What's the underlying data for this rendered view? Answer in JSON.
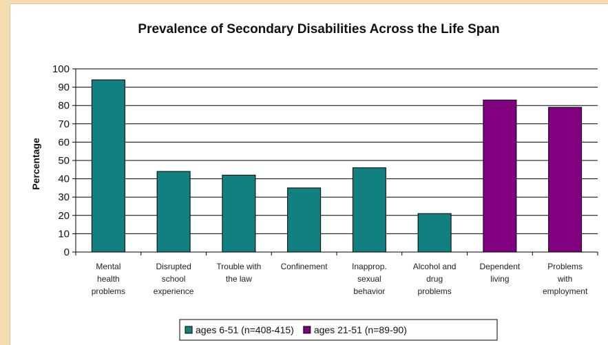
{
  "chart_data": {
    "type": "bar",
    "title": "Prevalence of Secondary Disabilities Across the Life Span",
    "xlabel": "",
    "ylabel": "Percentage",
    "ylim": [
      0,
      100
    ],
    "yticks": [
      0,
      10,
      20,
      30,
      40,
      50,
      60,
      70,
      80,
      90,
      100
    ],
    "grid": true,
    "legend_position": "bottom",
    "categories": [
      [
        "Mental",
        "health",
        "problems"
      ],
      [
        "Disrupted",
        "school",
        "experience"
      ],
      [
        "Trouble with",
        "the law"
      ],
      [
        "Confinement"
      ],
      [
        "Inapprop.",
        "sexual",
        "behavior"
      ],
      [
        "Alcohol and",
        "drug",
        "problems"
      ],
      [
        "Dependent",
        "living"
      ],
      [
        "Problems",
        "with",
        "employment"
      ]
    ],
    "series": [
      {
        "name": "ages 6-51 (n=408-415)",
        "color": "#128080",
        "values": [
          94,
          44,
          42,
          35,
          46,
          21,
          null,
          null
        ]
      },
      {
        "name": "ages 21-51 (n=89-90)",
        "color": "#800080",
        "values": [
          null,
          null,
          null,
          null,
          null,
          null,
          83,
          79
        ]
      }
    ]
  }
}
